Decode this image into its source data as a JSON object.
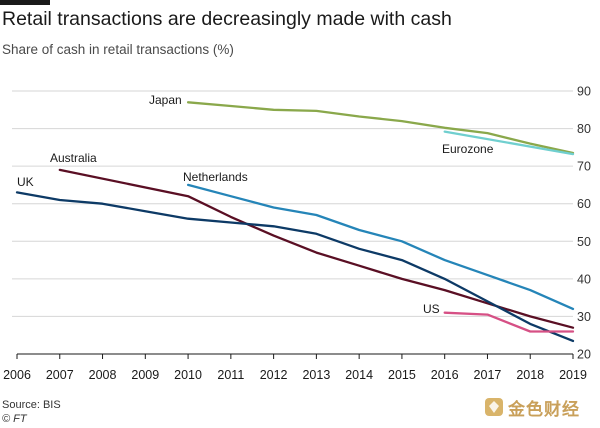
{
  "chart_data": {
    "type": "line",
    "title": "Retail transactions are decreasingly made with cash",
    "subtitle": "Share of cash in retail transactions (%)",
    "xlabel": "",
    "ylabel": "",
    "xlim": [
      2006,
      2019
    ],
    "ylim": [
      20,
      90
    ],
    "x_ticks": [
      2006,
      2007,
      2008,
      2009,
      2010,
      2011,
      2012,
      2013,
      2014,
      2015,
      2016,
      2017,
      2018,
      2019
    ],
    "y_ticks": [
      20,
      30,
      40,
      50,
      60,
      70,
      80,
      90
    ],
    "grid": "horizontal",
    "y_axis_side": "right",
    "series": [
      {
        "name": "Japan",
        "color": "#8aa84b",
        "x": [
          2010,
          2011,
          2012,
          2013,
          2014,
          2015,
          2016,
          2017,
          2018,
          2019
        ],
        "values": [
          87,
          86,
          85,
          84.7,
          83.2,
          82,
          80.2,
          78.8,
          76,
          73.5
        ]
      },
      {
        "name": "Eurozone",
        "color": "#70cfcf",
        "x": [
          2016,
          2019
        ],
        "values": [
          79.2,
          73.2
        ]
      },
      {
        "name": "Australia",
        "color": "#5a0f24",
        "x": [
          2007,
          2010,
          2011,
          2012,
          2013,
          2014,
          2015,
          2016,
          2017,
          2018,
          2019
        ],
        "values": [
          69,
          62,
          56.5,
          51.5,
          47,
          43.5,
          40,
          37,
          33.5,
          30,
          27
        ]
      },
      {
        "name": "Netherlands",
        "color": "#2585b8",
        "x": [
          2010,
          2011,
          2012,
          2013,
          2014,
          2015,
          2016,
          2017,
          2018,
          2019
        ],
        "values": [
          65,
          62,
          59,
          57,
          53,
          50,
          45,
          41,
          37,
          32
        ]
      },
      {
        "name": "UK",
        "color": "#0d3a66",
        "x": [
          2006,
          2007,
          2008,
          2009,
          2010,
          2011,
          2012,
          2013,
          2014,
          2015,
          2016,
          2017,
          2018,
          2019
        ],
        "values": [
          63,
          61,
          60,
          58,
          56,
          55,
          54,
          52,
          48,
          45,
          40,
          34,
          28,
          23.5
        ]
      },
      {
        "name": "US",
        "color": "#d65085",
        "x": [
          2016,
          2017,
          2018,
          2019
        ],
        "values": [
          31,
          30.5,
          26,
          26
        ]
      }
    ]
  },
  "footer": {
    "source": "Source: BIS",
    "credit": "© FT"
  },
  "watermark": {
    "text": "金色财经",
    "accent_color": "#c9a05a"
  }
}
